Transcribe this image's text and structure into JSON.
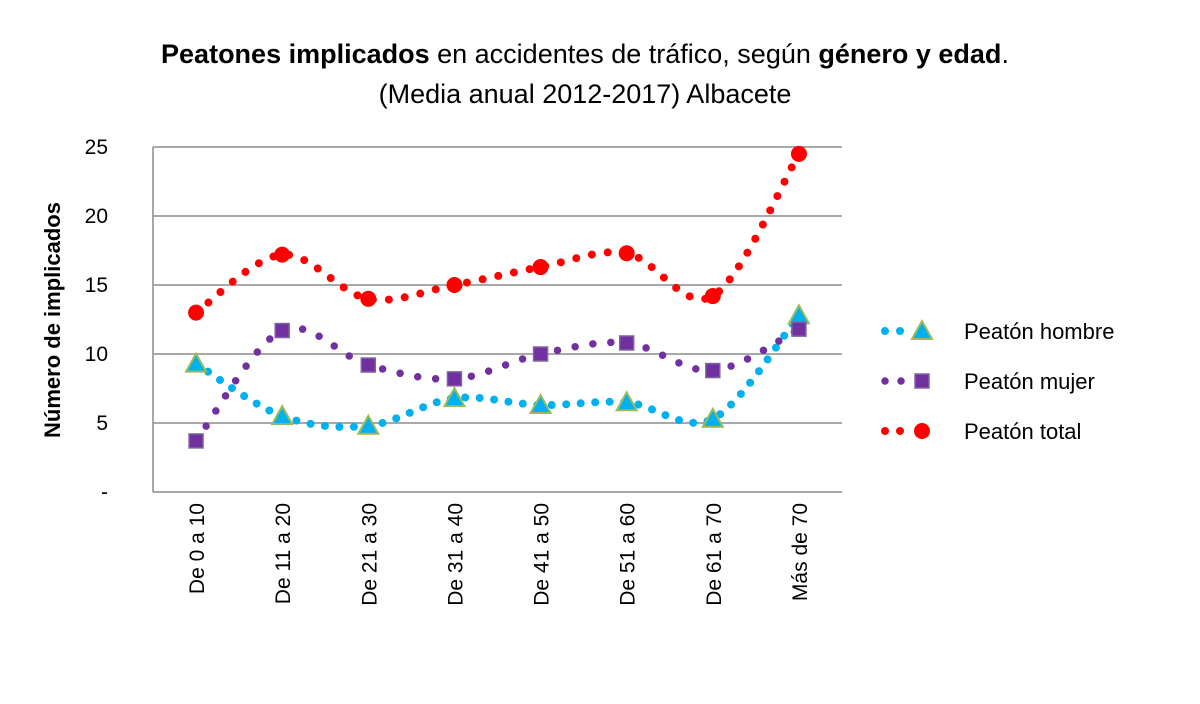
{
  "title": {
    "line1_part1": "Peatones implicados",
    "line1_part2": " en accidentes de tráfico, según ",
    "line1_part3": "género y edad",
    "line1_part4": ".",
    "line2": "(Media anual 2012-2017) Albacete"
  },
  "chart_data": {
    "type": "line",
    "categories": [
      "De 0 a 10",
      "De 11 a 20",
      "De 21 a 30",
      "De 31 a 40",
      "De 41 a 50",
      "De 51 a 60",
      "De 61 a 70",
      "Más de 70"
    ],
    "series": [
      {
        "name": "Peatón hombre",
        "color": "#00b0f0",
        "marker": "triangle",
        "values": [
          9.3,
          5.5,
          4.8,
          6.8,
          6.3,
          6.5,
          5.3,
          12.8
        ]
      },
      {
        "name": "Peatón mujer",
        "color": "#7030a0",
        "marker": "square",
        "values": [
          3.7,
          11.7,
          9.2,
          8.2,
          10.0,
          10.8,
          8.8,
          11.8
        ]
      },
      {
        "name": "Peatón total",
        "color": "#ff0000",
        "marker": "circle",
        "values": [
          13.0,
          17.2,
          14.0,
          15.0,
          16.3,
          17.3,
          14.2,
          24.5
        ]
      }
    ],
    "ylabel": "Número de implicados",
    "ylim": [
      0,
      25
    ],
    "y_ticks": [
      {
        "value": 0,
        "label": "-"
      },
      {
        "value": 5,
        "label": "5"
      },
      {
        "value": 10,
        "label": "10"
      },
      {
        "value": 15,
        "label": "15"
      },
      {
        "value": 20,
        "label": "20"
      },
      {
        "value": 25,
        "label": "25"
      }
    ],
    "grid": true,
    "legend_position": "right"
  }
}
